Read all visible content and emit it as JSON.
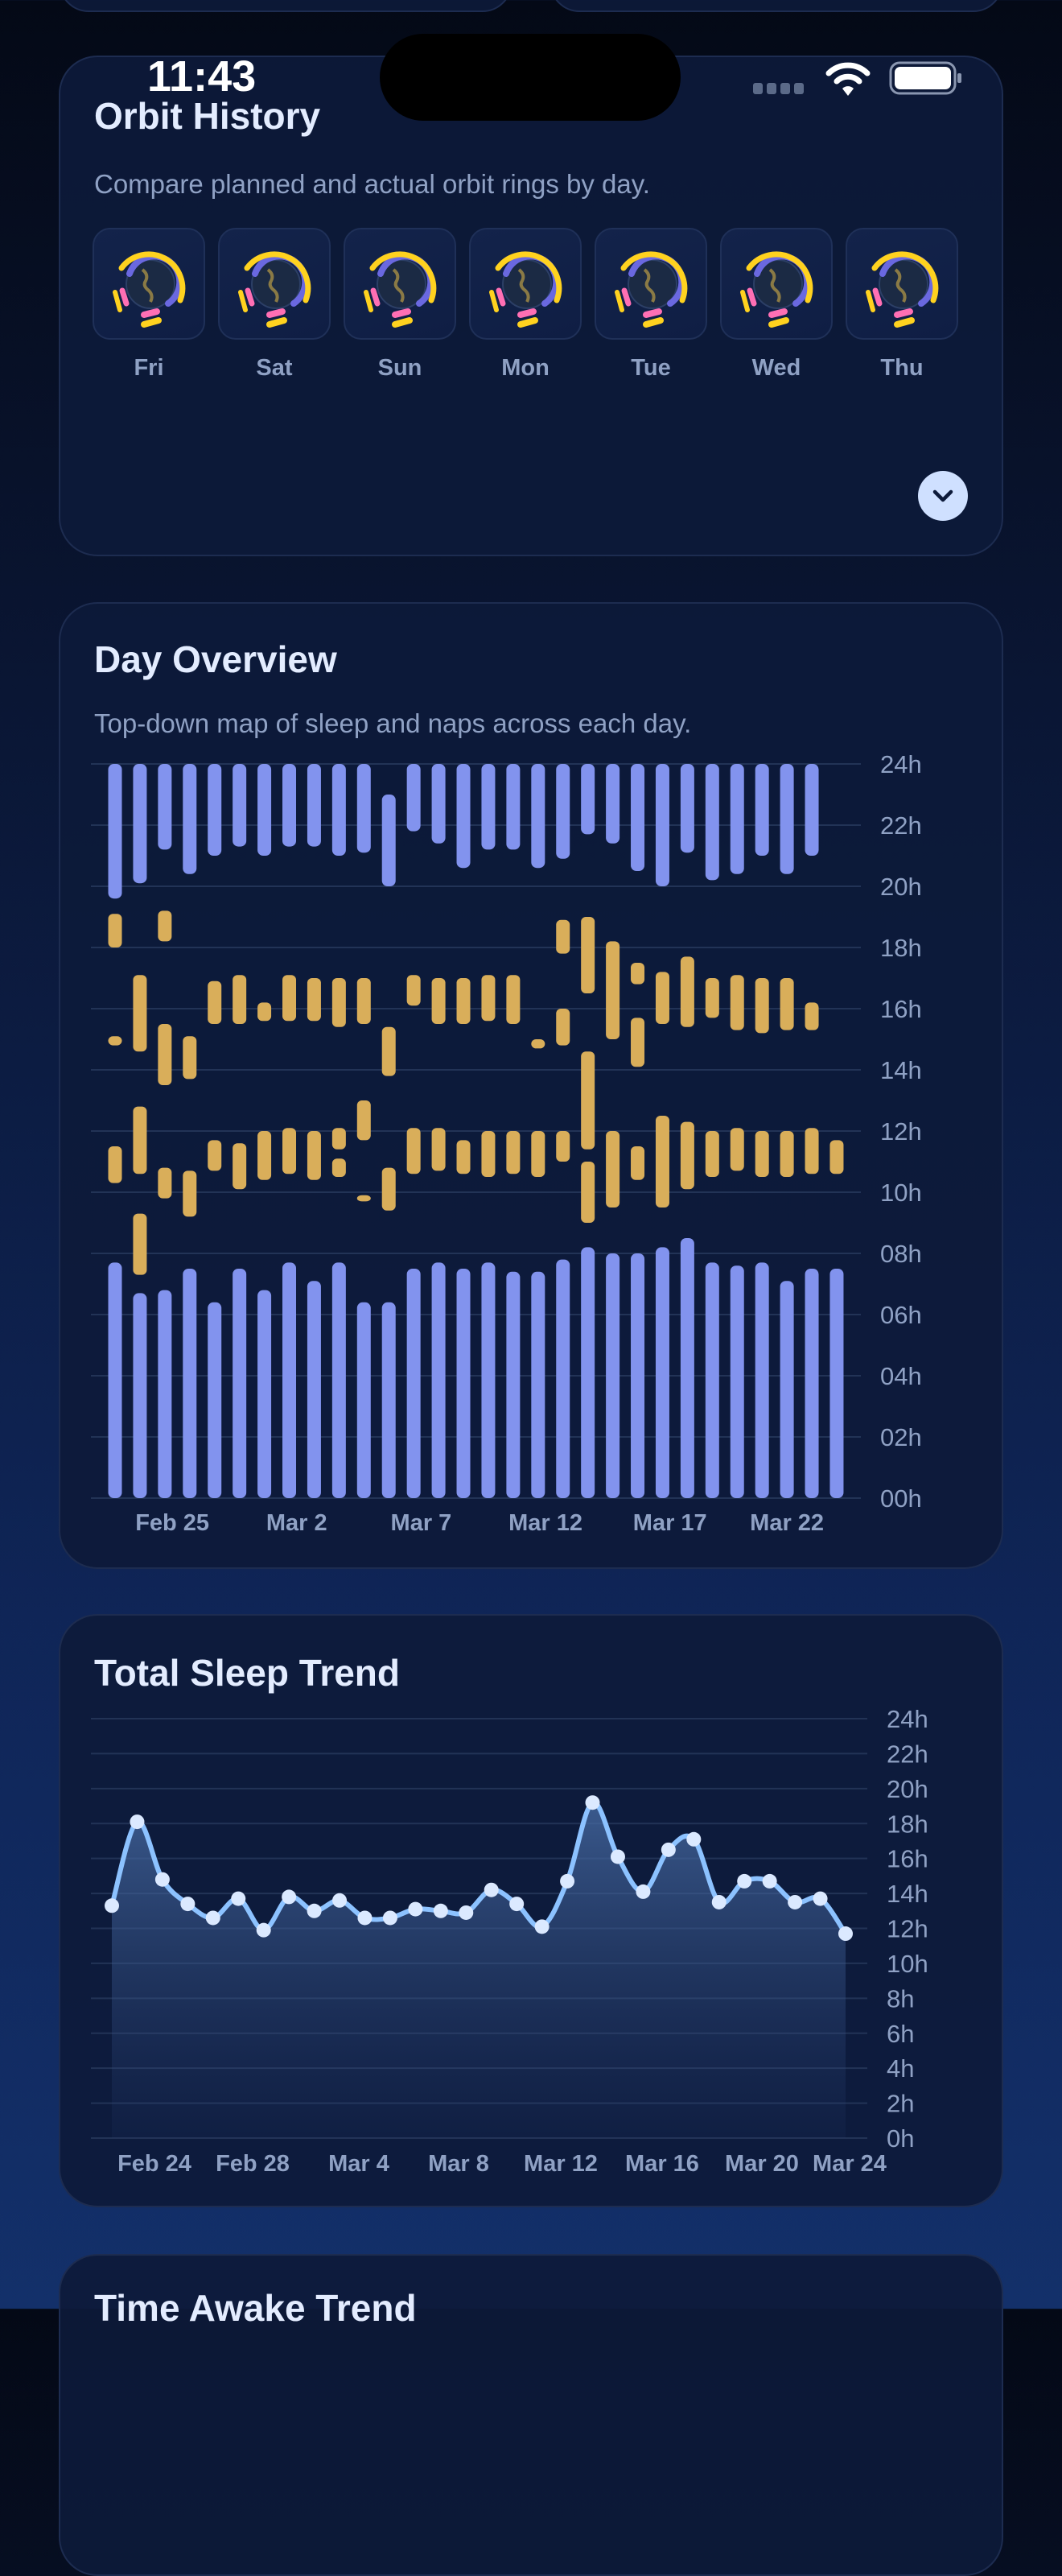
{
  "status_bar": {
    "time": "11:43"
  },
  "orbit_history": {
    "title": "Orbit History",
    "subtitle": "Compare planned and actual orbit rings by day.",
    "days": [
      "Fri",
      "Sat",
      "Sun",
      "Mon",
      "Tue",
      "Wed",
      "Thu"
    ],
    "expand_icon": "chevron-down-icon"
  },
  "day_overview": {
    "title": "Day Overview",
    "subtitle": "Top-down map of sleep and naps across each day.",
    "chart_data": {
      "type": "bar",
      "orientation": "vertical-range",
      "ylim": [
        0,
        24
      ],
      "y_tick_labels": [
        "24h",
        "22h",
        "20h",
        "18h",
        "16h",
        "14h",
        "12h",
        "10h",
        "08h",
        "06h",
        "04h",
        "02h",
        "00h"
      ],
      "x_tick_labels": [
        "Feb 25",
        "Mar 2",
        "Mar 7",
        "Mar 12",
        "Mar 17",
        "Mar 22"
      ],
      "grid": true,
      "colors": {
        "sleep": "#8293ee",
        "nap": "#d9ae5a"
      },
      "columns": [
        {
          "sleep": [
            [
              0,
              7.7
            ],
            [
              19.6,
              24
            ]
          ],
          "naps": [
            [
              18.0,
              19.1
            ],
            [
              14.8,
              15.1
            ],
            [
              10.3,
              11.5
            ]
          ]
        },
        {
          "sleep": [
            [
              0,
              6.7
            ],
            [
              20.1,
              24
            ]
          ],
          "naps": [
            [
              14.6,
              17.1
            ],
            [
              10.6,
              12.8
            ],
            [
              7.3,
              9.3
            ]
          ]
        },
        {
          "sleep": [
            [
              0,
              6.8
            ],
            [
              21.2,
              24
            ]
          ],
          "naps": [
            [
              18.2,
              19.2
            ],
            [
              13.5,
              15.5
            ],
            [
              9.8,
              10.8
            ]
          ]
        },
        {
          "sleep": [
            [
              0,
              7.5
            ],
            [
              20.4,
              24
            ]
          ],
          "naps": [
            [
              13.7,
              15.1
            ],
            [
              9.2,
              10.7
            ]
          ]
        },
        {
          "sleep": [
            [
              0,
              6.4
            ],
            [
              21.0,
              24
            ]
          ],
          "naps": [
            [
              15.5,
              16.9
            ],
            [
              10.7,
              11.7
            ]
          ]
        },
        {
          "sleep": [
            [
              0,
              7.5
            ],
            [
              21.3,
              24
            ]
          ],
          "naps": [
            [
              15.5,
              17.1
            ],
            [
              10.1,
              11.6
            ]
          ]
        },
        {
          "sleep": [
            [
              0,
              6.8
            ],
            [
              21.0,
              24
            ]
          ],
          "naps": [
            [
              15.6,
              16.2
            ],
            [
              10.4,
              12.0
            ]
          ]
        },
        {
          "sleep": [
            [
              0,
              7.7
            ],
            [
              21.3,
              24
            ]
          ],
          "naps": [
            [
              15.6,
              17.1
            ],
            [
              10.6,
              12.1
            ]
          ]
        },
        {
          "sleep": [
            [
              0,
              7.1
            ],
            [
              21.3,
              24
            ]
          ],
          "naps": [
            [
              15.6,
              17.0
            ],
            [
              10.4,
              12.0
            ]
          ]
        },
        {
          "sleep": [
            [
              0,
              7.7
            ],
            [
              21.0,
              24
            ]
          ],
          "naps": [
            [
              15.4,
              17.0
            ],
            [
              11.4,
              12.1
            ],
            [
              10.5,
              11.1
            ]
          ]
        },
        {
          "sleep": [
            [
              0,
              6.4
            ],
            [
              21.1,
              24
            ]
          ],
          "naps": [
            [
              15.5,
              17.0
            ],
            [
              11.7,
              13.0
            ],
            [
              9.7,
              9.9
            ]
          ]
        },
        {
          "sleep": [
            [
              0,
              6.4
            ],
            [
              20.0,
              23.0
            ]
          ],
          "naps": [
            [
              13.8,
              15.4
            ],
            [
              9.4,
              10.8
            ]
          ]
        },
        {
          "sleep": [
            [
              0,
              7.5
            ],
            [
              21.8,
              24
            ]
          ],
          "naps": [
            [
              16.1,
              17.1
            ],
            [
              10.6,
              12.1
            ]
          ]
        },
        {
          "sleep": [
            [
              0,
              7.7
            ],
            [
              21.4,
              24
            ]
          ],
          "naps": [
            [
              15.5,
              17.0
            ],
            [
              10.7,
              12.1
            ]
          ]
        },
        {
          "sleep": [
            [
              0,
              7.5
            ],
            [
              20.6,
              24
            ]
          ],
          "naps": [
            [
              15.5,
              17.0
            ],
            [
              10.6,
              11.7
            ]
          ]
        },
        {
          "sleep": [
            [
              0,
              7.7
            ],
            [
              21.2,
              24
            ]
          ],
          "naps": [
            [
              15.6,
              17.1
            ],
            [
              10.5,
              12.0
            ]
          ]
        },
        {
          "sleep": [
            [
              0,
              7.4
            ],
            [
              21.2,
              24
            ]
          ],
          "naps": [
            [
              15.5,
              17.1
            ],
            [
              10.6,
              12.0
            ]
          ]
        },
        {
          "sleep": [
            [
              0,
              7.4
            ],
            [
              20.6,
              24
            ]
          ],
          "naps": [
            [
              14.7,
              15.0
            ],
            [
              10.5,
              12.0
            ]
          ]
        },
        {
          "sleep": [
            [
              0,
              7.8
            ],
            [
              20.9,
              24
            ]
          ],
          "naps": [
            [
              17.8,
              18.9
            ],
            [
              14.8,
              16.0
            ],
            [
              11.0,
              12.0
            ]
          ]
        },
        {
          "sleep": [
            [
              0,
              8.2
            ],
            [
              21.7,
              24
            ]
          ],
          "naps": [
            [
              16.5,
              19.0
            ],
            [
              11.4,
              14.6
            ],
            [
              9.0,
              11.0
            ]
          ]
        },
        {
          "sleep": [
            [
              0,
              8.0
            ],
            [
              21.4,
              24
            ]
          ],
          "naps": [
            [
              15.0,
              18.2
            ],
            [
              9.5,
              12.0
            ]
          ]
        },
        {
          "sleep": [
            [
              0,
              8.0
            ],
            [
              20.5,
              24
            ]
          ],
          "naps": [
            [
              16.8,
              17.5
            ],
            [
              14.1,
              15.7
            ],
            [
              10.4,
              11.5
            ]
          ]
        },
        {
          "sleep": [
            [
              0,
              8.2
            ],
            [
              20.0,
              24
            ]
          ],
          "naps": [
            [
              15.5,
              17.2
            ],
            [
              9.5,
              12.5
            ]
          ]
        },
        {
          "sleep": [
            [
              0,
              8.5
            ],
            [
              21.1,
              24
            ]
          ],
          "naps": [
            [
              15.4,
              17.7
            ],
            [
              10.1,
              12.3
            ]
          ]
        },
        {
          "sleep": [
            [
              0,
              7.7
            ],
            [
              20.2,
              24
            ]
          ],
          "naps": [
            [
              15.7,
              17.0
            ],
            [
              10.5,
              12.0
            ]
          ]
        },
        {
          "sleep": [
            [
              0,
              7.6
            ],
            [
              20.4,
              24
            ]
          ],
          "naps": [
            [
              15.3,
              17.1
            ],
            [
              10.7,
              12.1
            ]
          ]
        },
        {
          "sleep": [
            [
              0,
              7.7
            ],
            [
              21.0,
              24
            ]
          ],
          "naps": [
            [
              15.2,
              17.0
            ],
            [
              10.5,
              12.0
            ]
          ]
        },
        {
          "sleep": [
            [
              0,
              7.1
            ],
            [
              20.4,
              24
            ]
          ],
          "naps": [
            [
              15.3,
              17.0
            ],
            [
              10.5,
              12.0
            ]
          ]
        },
        {
          "sleep": [
            [
              0,
              7.5
            ],
            [
              21.0,
              24
            ]
          ],
          "naps": [
            [
              15.3,
              16.2
            ],
            [
              10.6,
              12.1
            ]
          ]
        },
        {
          "sleep": [
            [
              0,
              7.5
            ]
          ],
          "naps": [
            [
              10.6,
              11.7
            ]
          ]
        }
      ]
    }
  },
  "total_sleep_trend": {
    "title": "Total Sleep Trend",
    "chart_data": {
      "type": "area",
      "ylim": [
        0,
        24
      ],
      "y_tick_labels": [
        "24h",
        "22h",
        "20h",
        "18h",
        "16h",
        "14h",
        "12h",
        "10h",
        "8h",
        "6h",
        "4h",
        "2h",
        "0h"
      ],
      "x_tick_labels": [
        "Feb 24",
        "Feb 28",
        "Mar 4",
        "Mar 8",
        "Mar 12",
        "Mar 16",
        "Mar 20",
        "Mar 24"
      ],
      "grid": true,
      "colors": {
        "line": "#8cc2ff",
        "point": "#dbe9ff"
      },
      "values": [
        13.3,
        18.1,
        14.8,
        13.4,
        12.6,
        13.7,
        11.9,
        13.8,
        13.0,
        13.6,
        12.6,
        12.6,
        13.1,
        13.0,
        12.9,
        14.2,
        13.4,
        12.1,
        14.7,
        19.2,
        16.1,
        14.1,
        16.5,
        17.1,
        13.5,
        14.7,
        14.7,
        13.5,
        13.7,
        11.7
      ]
    }
  },
  "time_awake_trend": {
    "title": "Time Awake Trend"
  }
}
